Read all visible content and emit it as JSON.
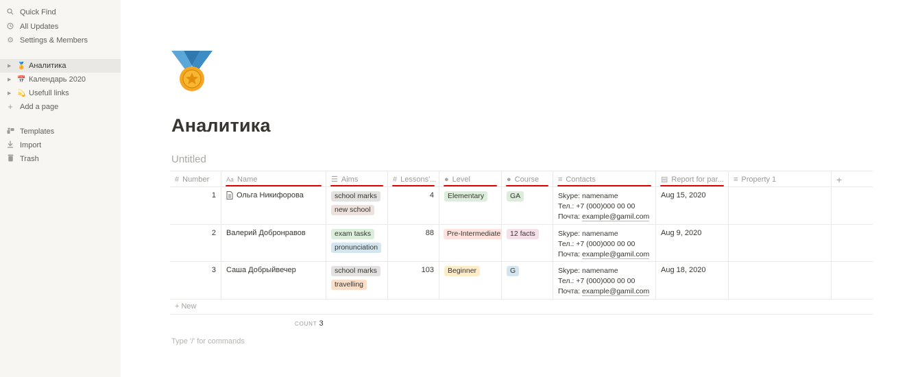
{
  "sidebar": {
    "top_items": [
      {
        "label": "Quick Find",
        "icon": "search-icon"
      },
      {
        "label": "All Updates",
        "icon": "clock-icon"
      },
      {
        "label": "Settings & Members",
        "icon": "gear-icon"
      }
    ],
    "pages": [
      {
        "label": "Аналитика",
        "emoji": "🏅",
        "active": true
      },
      {
        "label": "Календарь 2020",
        "emoji": "📅",
        "active": false
      },
      {
        "label": "Usefull links",
        "emoji": "💫",
        "active": false
      }
    ],
    "add_page": "Add a page",
    "bottom_items": [
      {
        "label": "Templates",
        "icon": "templates-icon"
      },
      {
        "label": "Import",
        "icon": "import-icon"
      },
      {
        "label": "Trash",
        "icon": "trash-icon"
      }
    ]
  },
  "page": {
    "title": "Аналитика",
    "icon": "medal-icon",
    "database_title": "Untitled",
    "command_hint": "Type '/' for commands"
  },
  "table": {
    "columns": [
      {
        "label": "Number",
        "icon": "#"
      },
      {
        "label": "Name",
        "icon": "Aa"
      },
      {
        "label": "Aims",
        "icon": "☰"
      },
      {
        "label": "Lessons'...",
        "icon": "#"
      },
      {
        "label": "Level",
        "icon": "●"
      },
      {
        "label": "Course",
        "icon": "●"
      },
      {
        "label": "Contacts",
        "icon": "≡"
      },
      {
        "label": "Report for par...",
        "icon": "▤"
      },
      {
        "label": "Property 1",
        "icon": "≡"
      },
      {
        "label": "+",
        "icon": ""
      }
    ],
    "rows": [
      {
        "number": "1",
        "name": "Ольга Никифорова",
        "has_doc": true,
        "aims": [
          {
            "label": "school marks",
            "color": "#e3e2e0"
          },
          {
            "label": "new school",
            "color": "#eee0da"
          }
        ],
        "lessons": "4",
        "level": {
          "label": "Elementary",
          "color": "#dbeddb"
        },
        "course": {
          "label": "GA",
          "color": "#dbeddb"
        },
        "contacts": [
          "Skype: namename",
          "Тел.: +7 (000)000 00 00",
          "Почта: ",
          "example@gamil.com"
        ],
        "report": "Aug 15, 2020"
      },
      {
        "number": "2",
        "name": "Валерий Добронравов",
        "has_doc": false,
        "aims": [
          {
            "label": "exam tasks",
            "color": "#dbeddb"
          },
          {
            "label": "pronunciation",
            "color": "#d3e5ef"
          }
        ],
        "lessons": "88",
        "level": {
          "label": "Pre-Intermediate",
          "color": "#ffe2dd"
        },
        "course": {
          "label": "12 facts",
          "color": "#f5e0e9"
        },
        "contacts": [
          "Skype: namename",
          "Тел.: +7 (000)000 00 00",
          "Почта: ",
          "example@gamil.com"
        ],
        "report": "Aug 9, 2020"
      },
      {
        "number": "3",
        "name": "Саша Добрыйвечер",
        "has_doc": false,
        "aims": [
          {
            "label": "school marks",
            "color": "#e3e2e0"
          },
          {
            "label": "travelling",
            "color": "#fadec9"
          }
        ],
        "lessons": "103",
        "level": {
          "label": "Beginner",
          "color": "#fdecc8"
        },
        "course": {
          "label": "G",
          "color": "#d3e5ef"
        },
        "contacts": [
          "Skype: namename",
          "Тел.: +7 (000)000 00 00",
          "Почта: ",
          "example@gamil.com"
        ],
        "report": "Aug 18, 2020"
      }
    ],
    "new_label": "+ New",
    "count_label": "COUNT",
    "count_value": "3"
  }
}
